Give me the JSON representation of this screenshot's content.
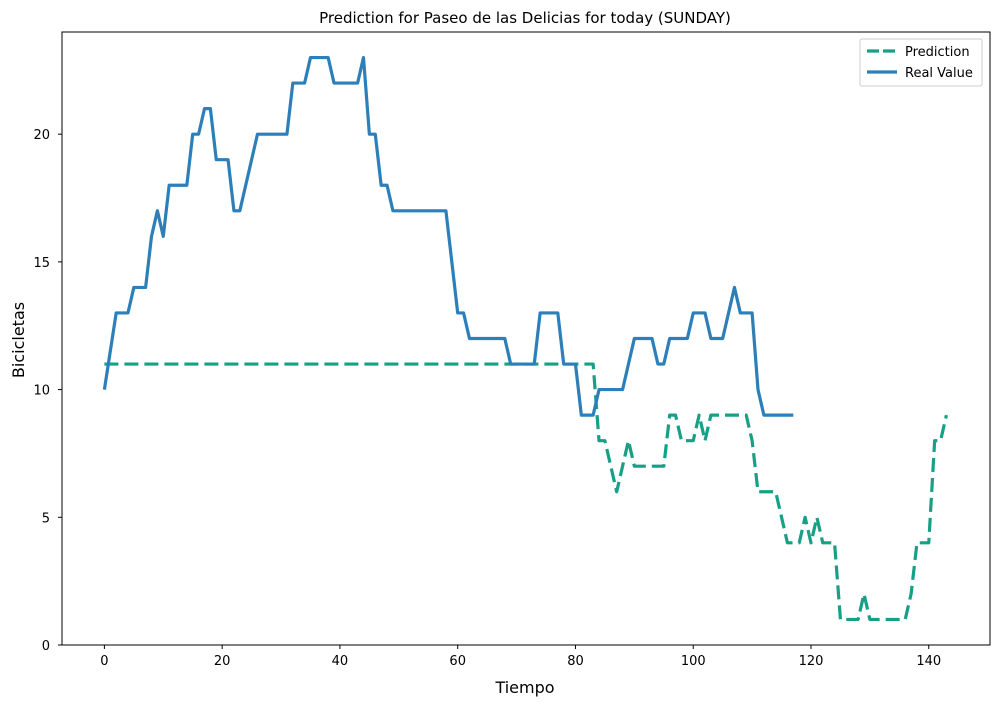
{
  "chart_data": {
    "type": "line",
    "title": "Prediction for Paseo de las Delicias for today (SUNDAY)",
    "xlabel": "Tiempo",
    "ylabel": "Bicicletas",
    "xlim": [
      -7.2,
      150.4
    ],
    "ylim": [
      0,
      24.0
    ],
    "xticks": [
      0,
      20,
      40,
      60,
      80,
      100,
      120,
      140
    ],
    "yticks": [
      0,
      5,
      10,
      15,
      20
    ],
    "grid": false,
    "legend_position": "top-right",
    "series": [
      {
        "name": "Prediction",
        "color": "#16a085",
        "style": "dashed",
        "points": [
          [
            0,
            11
          ],
          [
            83,
            11
          ],
          [
            84,
            8
          ],
          [
            85,
            8
          ],
          [
            87,
            6
          ],
          [
            89,
            8
          ],
          [
            90,
            7
          ],
          [
            95,
            7
          ],
          [
            96,
            9
          ],
          [
            97,
            9
          ],
          [
            98,
            8
          ],
          [
            100,
            8
          ],
          [
            101,
            9
          ],
          [
            102,
            8
          ],
          [
            103,
            9
          ],
          [
            108,
            9
          ],
          [
            109,
            9
          ],
          [
            110,
            8
          ],
          [
            111,
            6
          ],
          [
            114,
            6
          ],
          [
            116,
            4
          ],
          [
            118,
            4
          ],
          [
            119,
            5
          ],
          [
            120,
            4
          ],
          [
            121,
            5
          ],
          [
            122,
            4
          ],
          [
            124,
            4
          ],
          [
            125,
            1
          ],
          [
            128,
            1
          ],
          [
            129,
            2
          ],
          [
            130,
            1
          ],
          [
            136,
            1
          ],
          [
            137,
            2
          ],
          [
            138,
            4
          ],
          [
            140,
            4
          ],
          [
            141,
            8
          ],
          [
            142,
            8
          ],
          [
            143,
            9
          ]
        ]
      },
      {
        "name": "Real Value",
        "color": "#2c7fb8",
        "style": "solid",
        "points": [
          [
            0,
            10
          ],
          [
            2,
            13
          ],
          [
            4,
            13
          ],
          [
            5,
            14
          ],
          [
            7,
            14
          ],
          [
            8,
            16
          ],
          [
            9,
            17
          ],
          [
            10,
            16
          ],
          [
            11,
            18
          ],
          [
            14,
            18
          ],
          [
            15,
            20
          ],
          [
            16,
            20
          ],
          [
            17,
            21
          ],
          [
            18,
            21
          ],
          [
            19,
            19
          ],
          [
            21,
            19
          ],
          [
            22,
            17
          ],
          [
            23,
            17
          ],
          [
            26,
            20
          ],
          [
            31,
            20
          ],
          [
            32,
            22
          ],
          [
            34,
            22
          ],
          [
            35,
            23
          ],
          [
            38,
            23
          ],
          [
            39,
            22
          ],
          [
            43,
            22
          ],
          [
            44,
            23
          ],
          [
            45,
            20
          ],
          [
            46,
            20
          ],
          [
            47,
            18
          ],
          [
            48,
            18
          ],
          [
            49,
            17
          ],
          [
            58,
            17
          ],
          [
            60,
            13
          ],
          [
            61,
            13
          ],
          [
            62,
            12
          ],
          [
            68,
            12
          ],
          [
            69,
            11
          ],
          [
            73,
            11
          ],
          [
            74,
            13
          ],
          [
            77,
            13
          ],
          [
            78,
            11
          ],
          [
            80,
            11
          ],
          [
            81,
            9
          ],
          [
            83,
            9
          ],
          [
            84,
            10
          ],
          [
            88,
            10
          ],
          [
            90,
            12
          ],
          [
            93,
            12
          ],
          [
            94,
            11
          ],
          [
            95,
            11
          ],
          [
            96,
            12
          ],
          [
            99,
            12
          ],
          [
            100,
            13
          ],
          [
            102,
            13
          ],
          [
            103,
            12
          ],
          [
            105,
            12
          ],
          [
            107,
            14
          ],
          [
            108,
            13
          ],
          [
            110,
            13
          ],
          [
            111,
            10
          ],
          [
            112,
            9
          ],
          [
            117,
            9
          ]
        ]
      }
    ]
  }
}
